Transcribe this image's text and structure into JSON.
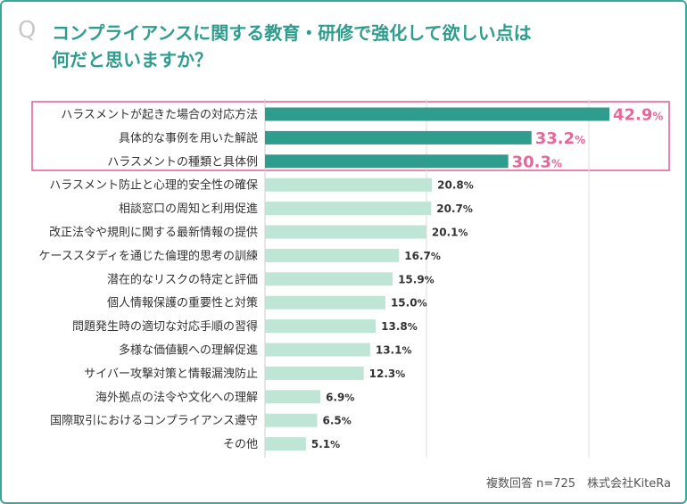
{
  "title": {
    "prefix": "Q",
    "line1": "コンプライアンスに関する教育・研修で強化して欲しい点は",
    "line2": "何だと思いますか？"
  },
  "footer": "複数回答 n=725　株式会社KiteRa",
  "colors": {
    "highlight_bar": "#2e9d8e",
    "normal_bar": "#bfe5d6",
    "highlight_text": "#e8679a",
    "highlight_border": "#e8679a",
    "frame": "#3aa79a"
  },
  "chart_data": {
    "type": "bar",
    "orientation": "horizontal",
    "categories": [
      "ハラスメントが起きた場合の対応方法",
      "具体的な事例を用いた解説",
      "ハラスメントの種類と具体例",
      "ハラスメント防止と心理的安全性の確保",
      "相談窓口の周知と利用促進",
      "改正法令や規則に関する最新情報の提供",
      "ケーススタディを通じた倫理的思考の訓練",
      "潜在的なリスクの特定と評価",
      "個人情報保護の重要性と対策",
      "問題発生時の適切な対応手順の習得",
      "多様な価値観への理解促進",
      "サイバー攻撃対策と情報漏洩防止",
      "海外拠点の法令や文化への理解",
      "国際取引におけるコンプライアンス遵守",
      "その他"
    ],
    "values": [
      42.9,
      33.2,
      30.3,
      20.8,
      20.7,
      20.1,
      16.7,
      15.9,
      15.0,
      13.8,
      13.1,
      12.3,
      6.9,
      6.5,
      5.1
    ],
    "labels": [
      "42.9",
      "33.2",
      "30.3",
      "20.8",
      "20.7",
      "20.1",
      "16.7",
      "15.9",
      "15.0",
      "13.8",
      "13.1",
      "12.3",
      "6.9",
      "6.5",
      "5.1"
    ],
    "unit": "%",
    "highlighted_top_n": 3,
    "xlim": [
      0,
      45
    ]
  }
}
